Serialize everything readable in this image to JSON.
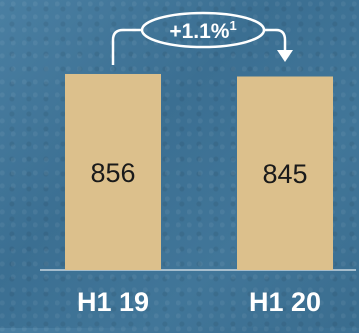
{
  "chart_data": {
    "type": "bar",
    "categories": [
      "H1 19",
      "H1 20"
    ],
    "values": [
      856,
      845
    ],
    "value_labels": [
      "856",
      "845"
    ],
    "ylim": [
      0,
      1000
    ],
    "grid": false,
    "annotation": {
      "text": "+1.1%",
      "superscript": "1"
    },
    "colors": {
      "bar": "#dcc08c",
      "text_dark": "#1a1a1a",
      "text_light": "#ffffff",
      "background": "#3f7395"
    }
  }
}
